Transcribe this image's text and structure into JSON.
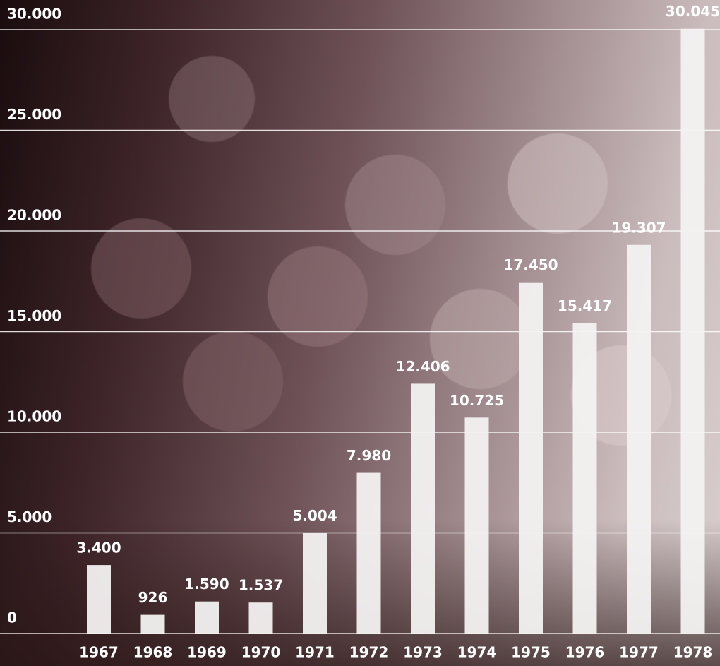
{
  "chart_data": {
    "type": "bar",
    "categories": [
      "1967",
      "1968",
      "1969",
      "1970",
      "1971",
      "1972",
      "1973",
      "1974",
      "1975",
      "1976",
      "1977",
      "1978"
    ],
    "values": [
      3400,
      926,
      1590,
      1537,
      5004,
      7980,
      12406,
      10725,
      17450,
      15417,
      19307,
      30045
    ],
    "value_labels": [
      "3.400",
      "926",
      "1.590",
      "1.537",
      "5.004",
      "7.980",
      "12.406",
      "10.725",
      "17.450",
      "15.417",
      "19.307",
      "30.045"
    ],
    "color": "#f3f1f1",
    "ylim": [
      0,
      30000
    ],
    "yticks": [
      0,
      {
        "value": 5000,
        "label": "5.000"
      },
      {
        "value": 10000,
        "label": "10.000"
      },
      {
        "value": 15000,
        "label": "15.000"
      },
      {
        "value": 20000,
        "label": "20.000"
      },
      {
        "value": 25000,
        "label": "25.000"
      },
      {
        "value": 30000,
        "label": "30.000"
      }
    ],
    "grid": true
  }
}
